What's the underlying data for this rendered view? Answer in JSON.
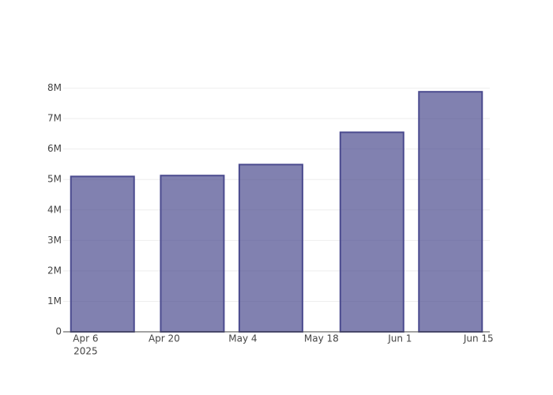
{
  "chart_data": {
    "type": "bar",
    "x": [
      "2025-04-09",
      "2025-04-25",
      "2025-05-09",
      "2025-05-27",
      "2025-06-10"
    ],
    "values": [
      5100000,
      5130000,
      5490000,
      6550000,
      7880000
    ],
    "color": "#4b4b8f",
    "xlim": [
      "2025-04-02",
      "2025-06-17"
    ],
    "xticks": [
      {
        "value": "2025-04-06",
        "label": "Apr 6"
      },
      {
        "value": "2025-04-20",
        "label": "Apr 20"
      },
      {
        "value": "2025-05-04",
        "label": "May 4"
      },
      {
        "value": "2025-05-18",
        "label": "May 18"
      },
      {
        "value": "2025-06-01",
        "label": "Jun 1"
      },
      {
        "value": "2025-06-15",
        "label": "Jun 15"
      }
    ],
    "xtick_year": "2025",
    "ylim": [
      0,
      8300000
    ],
    "yticks": [
      0,
      {
        "value": 1000000,
        "label": "1M"
      },
      {
        "value": 2000000,
        "label": "2M"
      },
      {
        "value": 3000000,
        "label": "3M"
      },
      {
        "value": 4000000,
        "label": "4M"
      },
      {
        "value": 5000000,
        "label": "5M"
      },
      {
        "value": 6000000,
        "label": "6M"
      },
      {
        "value": 7000000,
        "label": "7M"
      },
      {
        "value": 8000000,
        "label": "8M"
      }
    ],
    "grid": true
  }
}
